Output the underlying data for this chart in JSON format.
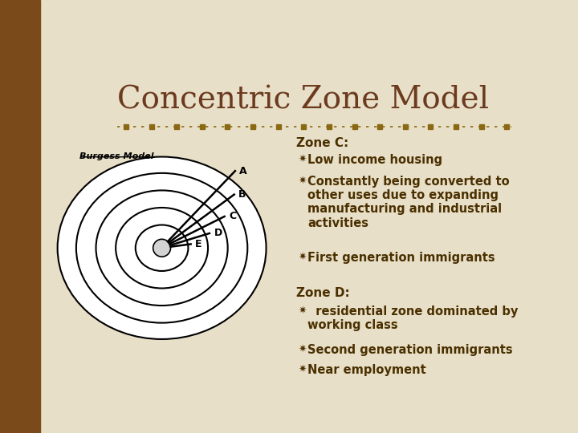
{
  "title": "Concentric Zone Model",
  "title_color": "#6B3A1F",
  "title_fontsize": 28,
  "bg_color": "#E8DFC8",
  "sidebar_color": "#7B4A1A",
  "divider_color": "#8B6914",
  "zone_c_header": "Zone C:",
  "zone_c_bullets": [
    "Low income housing",
    "Constantly being converted to\nother uses due to expanding\nmanufacturing and industrial\nactivities",
    "First generation immigrants"
  ],
  "zone_d_header": "Zone D:",
  "zone_d_bullets": [
    "  residential zone dominated by\nworking class",
    "Second generation immigrants",
    "Near employment"
  ],
  "text_color": "#4A3000",
  "bullet_symbol": "✷",
  "header_fontsize": 11,
  "bullet_fontsize": 10.5,
  "burgess_label": "Burgess Model",
  "zone_labels": [
    "A",
    "B",
    "C",
    "D",
    "E"
  ]
}
